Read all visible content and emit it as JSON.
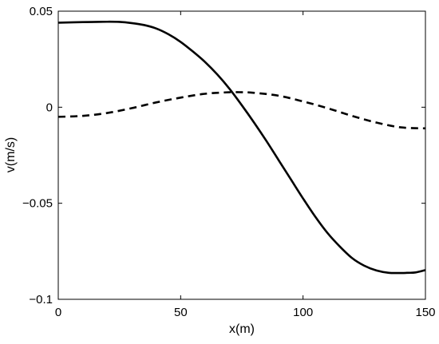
{
  "chart_data": {
    "type": "line",
    "title": "",
    "xlabel": "x(m)",
    "ylabel": "v(m/s)",
    "xlim": [
      0,
      150
    ],
    "ylim": [
      -0.1,
      0.05
    ],
    "grid": false,
    "legend": "none",
    "x_ticks": [
      "0",
      "50",
      "100",
      "150"
    ],
    "y_ticks": [
      "−0.1",
      "−0.05",
      "0",
      "0.05"
    ],
    "x_tick_values": [
      0,
      50,
      100,
      150
    ],
    "y_tick_values": [
      -0.1,
      -0.05,
      0,
      0.05
    ],
    "series": [
      {
        "style": "solid",
        "color": "#000000",
        "x": [
          0,
          10,
          20,
          25,
          30,
          35,
          40,
          45,
          50,
          55,
          60,
          65,
          70,
          75,
          80,
          85,
          90,
          95,
          100,
          105,
          110,
          115,
          120,
          125,
          130,
          135,
          140,
          143,
          146,
          150
        ],
        "y": [
          0.044,
          0.0443,
          0.0445,
          0.0444,
          0.0438,
          0.0428,
          0.041,
          0.038,
          0.034,
          0.029,
          0.0235,
          0.017,
          0.0095,
          0.001,
          -0.008,
          -0.0175,
          -0.0275,
          -0.0375,
          -0.0475,
          -0.057,
          -0.0655,
          -0.0725,
          -0.0785,
          -0.0825,
          -0.085,
          -0.0862,
          -0.0863,
          -0.0862,
          -0.086,
          -0.0848
        ]
      },
      {
        "style": "dashed",
        "color": "#000000",
        "x": [
          0,
          10,
          20,
          30,
          40,
          50,
          60,
          70,
          75,
          80,
          90,
          100,
          110,
          120,
          130,
          140,
          150
        ],
        "y": [
          -0.005,
          -0.0045,
          -0.003,
          -0.0005,
          0.0025,
          0.005,
          0.007,
          0.0078,
          0.0078,
          0.0075,
          0.006,
          0.003,
          -0.0005,
          -0.0045,
          -0.008,
          -0.0105,
          -0.011
        ]
      }
    ]
  }
}
